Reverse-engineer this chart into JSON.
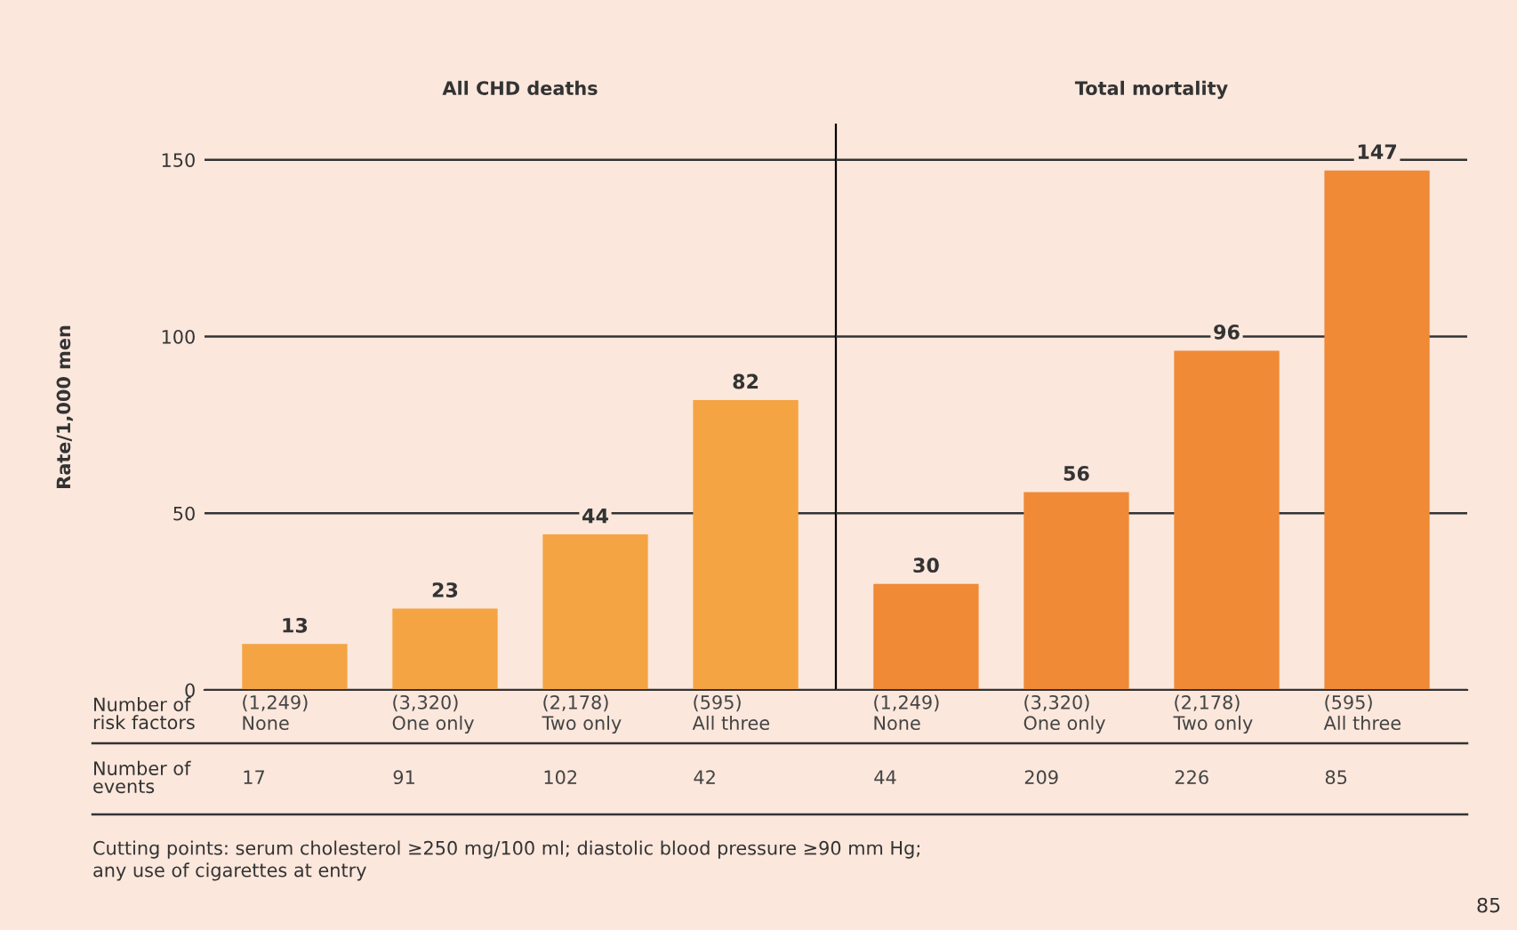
{
  "chart_data": [
    {
      "type": "bar",
      "title": "All CHD deaths",
      "ylabel": "Rate/1,000 men",
      "xlabel": "Number of\nrisk factors",
      "categories": [
        "(1,249)\nNone",
        "(3,320)\nOne only",
        "(2,178)\nTwo only",
        "(595)\nAll three"
      ],
      "series": [
        {
          "color": "#f5a443",
          "values": [
            13,
            23,
            44,
            82
          ]
        }
      ],
      "ylim": [
        0,
        160
      ],
      "yticks": [
        0,
        50,
        100,
        150
      ],
      "grid": "y",
      "data_labels": true,
      "annotations": [
        "Number of\nevents",
        "17",
        "91",
        "102",
        "42",
        "Cutting points: serum cholesterol ≥250 mg/100 ml; diastolic blood pressure ≥90 mm Hg;\nany use of cigarettes at entry",
        "85"
      ]
    },
    {
      "type": "bar",
      "title": "Total mortality",
      "categories": [
        "(1,249)\nNone",
        "(3,320)\nOne only",
        "(2,178)\nTwo only",
        "(595)\nAll three"
      ],
      "series": [
        {
          "color": "#f08a36",
          "values": [
            30,
            56,
            96,
            147
          ]
        }
      ],
      "ylim": [
        0,
        160
      ],
      "yticks": [
        0,
        50,
        100,
        150
      ],
      "grid": "y",
      "data_labels": true,
      "tick_labels": "x",
      "annotations": [
        "44",
        "209",
        "226",
        "85"
      ]
    }
  ]
}
